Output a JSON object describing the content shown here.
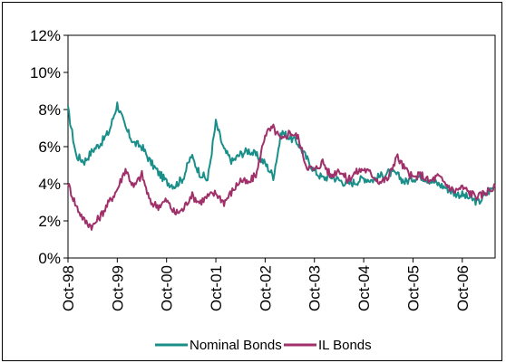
{
  "chart_data": {
    "type": "line",
    "title": "",
    "xlabel": "",
    "ylabel": "",
    "ylim": [
      0,
      12
    ],
    "y_ticks": [
      "0%",
      "2%",
      "4%",
      "6%",
      "8%",
      "10%",
      "12%"
    ],
    "x_ticks": [
      "Oct-98",
      "Oct-99",
      "Oct-00",
      "Oct-01",
      "Oct-02",
      "Oct-03",
      "Oct-04",
      "Oct-05",
      "Oct-06"
    ],
    "grid": false,
    "legend_position": "bottom",
    "x": [
      "Oct-98",
      "Dec-98",
      "Feb-99",
      "Apr-99",
      "Jun-99",
      "Aug-99",
      "Oct-99",
      "Dec-99",
      "Feb-00",
      "Apr-00",
      "Jun-00",
      "Aug-00",
      "Oct-00",
      "Dec-00",
      "Feb-01",
      "Apr-01",
      "Jun-01",
      "Aug-01",
      "Oct-01",
      "Dec-01",
      "Feb-02",
      "Apr-02",
      "Jun-02",
      "Aug-02",
      "Oct-02",
      "Dec-02",
      "Feb-03",
      "Apr-03",
      "Jun-03",
      "Aug-03",
      "Oct-03",
      "Dec-03",
      "Feb-04",
      "Apr-04",
      "Jun-04",
      "Aug-04",
      "Oct-04",
      "Dec-04",
      "Feb-05",
      "Apr-05",
      "Jun-05",
      "Aug-05",
      "Oct-05",
      "Dec-05",
      "Feb-06",
      "Apr-06",
      "Jun-06",
      "Aug-06",
      "Oct-06",
      "Dec-06",
      "Feb-07",
      "Apr-07",
      "Jun-07"
    ],
    "series": [
      {
        "name": "Nominal Bonds",
        "color": "#1a8f8a",
        "values": [
          8.0,
          5.5,
          5.2,
          5.8,
          6.2,
          6.8,
          8.3,
          7.0,
          6.2,
          6.0,
          5.2,
          4.6,
          4.1,
          3.9,
          4.3,
          5.5,
          4.6,
          4.2,
          7.3,
          5.8,
          5.2,
          5.6,
          5.8,
          5.5,
          5.1,
          4.4,
          6.8,
          6.5,
          6.2,
          5.4,
          4.7,
          4.3,
          4.4,
          4.2,
          4.0,
          4.1,
          4.3,
          4.2,
          4.4,
          4.6,
          4.5,
          4.1,
          4.3,
          4.4,
          4.2,
          4.0,
          3.8,
          3.5,
          3.4,
          3.2,
          3.0,
          3.5,
          3.9
        ]
      },
      {
        "name": "IL Bonds",
        "color": "#a0306a",
        "values": [
          4.0,
          2.8,
          2.0,
          1.7,
          2.3,
          3.0,
          3.7,
          4.8,
          3.8,
          4.5,
          3.0,
          2.8,
          3.1,
          2.4,
          2.6,
          3.4,
          3.0,
          3.3,
          3.5,
          3.0,
          3.6,
          4.2,
          4.0,
          4.6,
          6.7,
          7.0,
          6.3,
          6.8,
          6.5,
          5.0,
          4.7,
          5.2,
          4.4,
          4.8,
          4.2,
          4.6,
          4.8,
          4.5,
          4.1,
          4.3,
          5.5,
          4.8,
          4.3,
          4.5,
          4.1,
          4.4,
          4.0,
          3.6,
          3.8,
          3.5,
          3.3,
          3.6,
          3.8
        ]
      }
    ]
  }
}
